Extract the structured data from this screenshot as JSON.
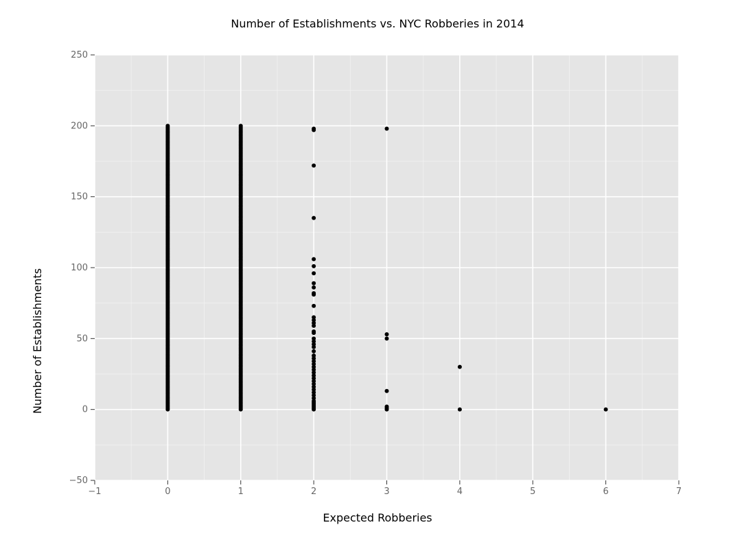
{
  "chart_data": {
    "type": "scatter",
    "title": "Number of Establishments vs. NYC Robberies in 2014",
    "xlabel": "Expected Robberies",
    "ylabel": "Number of Establishments",
    "xlim": [
      -1,
      7
    ],
    "ylim": [
      -50,
      250
    ],
    "x_ticks": [
      -1,
      0,
      1,
      2,
      3,
      4,
      5,
      6,
      7
    ],
    "x_tick_labels": [
      "−1",
      "0",
      "1",
      "2",
      "3",
      "4",
      "5",
      "6",
      "7"
    ],
    "y_ticks": [
      -50,
      0,
      50,
      100,
      150,
      200,
      250
    ],
    "y_tick_labels": [
      "−50",
      "0",
      "50",
      "100",
      "150",
      "200",
      "250"
    ],
    "grid": true,
    "background": "#e5e5e5",
    "grid_color": "#ffffff",
    "point_color": "#000000",
    "points": [
      {
        "x": 0,
        "y_min": 0,
        "y_max": 200
      },
      {
        "x": 1,
        "y_min": 0,
        "y_max": 200
      },
      {
        "x": 2,
        "y": 198
      },
      {
        "x": 2,
        "y": 197
      },
      {
        "x": 2,
        "y": 172
      },
      {
        "x": 2,
        "y": 135
      },
      {
        "x": 2,
        "y": 106
      },
      {
        "x": 2,
        "y": 101
      },
      {
        "x": 2,
        "y": 96
      },
      {
        "x": 2,
        "y": 89
      },
      {
        "x": 2,
        "y": 86
      },
      {
        "x": 2,
        "y": 82
      },
      {
        "x": 2,
        "y": 81
      },
      {
        "x": 2,
        "y": 73
      },
      {
        "x": 2,
        "y": 65
      },
      {
        "x": 2,
        "y": 63
      },
      {
        "x": 2,
        "y": 61
      },
      {
        "x": 2,
        "y": 59
      },
      {
        "x": 2,
        "y": 55
      },
      {
        "x": 2,
        "y": 54
      },
      {
        "x": 2,
        "y": 50
      },
      {
        "x": 2,
        "y": 48
      },
      {
        "x": 2,
        "y": 46
      },
      {
        "x": 2,
        "y": 44
      },
      {
        "x": 2,
        "y": 41
      },
      {
        "x": 2,
        "y": 38
      },
      {
        "x": 2,
        "y": 36
      },
      {
        "x": 2,
        "y": 34
      },
      {
        "x": 2,
        "y": 32
      },
      {
        "x": 2,
        "y": 30
      },
      {
        "x": 2,
        "y": 28
      },
      {
        "x": 2,
        "y": 26
      },
      {
        "x": 2,
        "y": 24
      },
      {
        "x": 2,
        "y": 22
      },
      {
        "x": 2,
        "y": 20
      },
      {
        "x": 2,
        "y": 18
      },
      {
        "x": 2,
        "y": 16
      },
      {
        "x": 2,
        "y": 14
      },
      {
        "x": 2,
        "y": 12
      },
      {
        "x": 2,
        "y": 10
      },
      {
        "x": 2,
        "y": 8
      },
      {
        "x": 2,
        "y": 6
      },
      {
        "x": 2,
        "y": 5
      },
      {
        "x": 2,
        "y": 4
      },
      {
        "x": 2,
        "y": 3
      },
      {
        "x": 2,
        "y": 2
      },
      {
        "x": 2,
        "y": 1
      },
      {
        "x": 2,
        "y": 0
      },
      {
        "x": 3,
        "y": 198
      },
      {
        "x": 3,
        "y": 53
      },
      {
        "x": 3,
        "y": 50
      },
      {
        "x": 3,
        "y": 13
      },
      {
        "x": 3,
        "y": 2
      },
      {
        "x": 3,
        "y": 1
      },
      {
        "x": 3,
        "y": 0
      },
      {
        "x": 4,
        "y": 30
      },
      {
        "x": 4,
        "y": 0
      },
      {
        "x": 6,
        "y": 0
      }
    ]
  }
}
